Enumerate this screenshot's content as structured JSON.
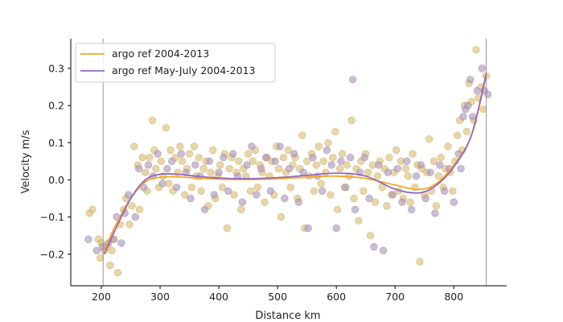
{
  "chart_data": {
    "type": "scatter",
    "title": "",
    "xlabel": "Distance km",
    "ylabel": "Velocity m/s",
    "xlim": [
      148,
      890
    ],
    "ylim": [
      -0.285,
      0.38
    ],
    "xticks": [
      200,
      300,
      400,
      500,
      600,
      700,
      800
    ],
    "yticks": [
      -0.2,
      -0.1,
      0.0,
      0.1,
      0.2,
      0.3
    ],
    "ytick_labels": [
      "−0.2",
      "−0.1",
      "0.0",
      "0.1",
      "0.2",
      "0.3"
    ],
    "grid": false,
    "legend_position": "top-left",
    "vertical_lines": [
      203,
      855
    ],
    "colors": {
      "fit_2004_2013": "#f5a623",
      "fit_may_july": "#9467bd",
      "points_gold": "#d4b46a",
      "points_purple": "#a993b4",
      "vline": "#8a8a8a"
    },
    "series": [
      {
        "name": "argo ref 2004-2013",
        "kind": "line",
        "x": [
          205,
          225,
          250,
          275,
          300,
          330,
          360,
          400,
          450,
          500,
          550,
          600,
          650,
          700,
          740,
          770,
          800,
          830,
          855
        ],
        "y": [
          -0.19,
          -0.12,
          -0.05,
          -0.005,
          0.007,
          0.008,
          0.005,
          0.002,
          0.001,
          0.003,
          0.007,
          0.01,
          0.004,
          -0.014,
          -0.026,
          -0.01,
          0.04,
          0.12,
          0.28
        ]
      },
      {
        "name": "argo ref May-July 2004-2013",
        "kind": "line",
        "x": [
          205,
          225,
          250,
          275,
          300,
          330,
          360,
          400,
          450,
          500,
          550,
          600,
          650,
          700,
          740,
          770,
          800,
          830,
          855
        ],
        "y": [
          -0.2,
          -0.13,
          -0.05,
          0.0,
          0.015,
          0.015,
          0.01,
          0.005,
          0.003,
          0.006,
          0.012,
          0.018,
          0.01,
          -0.025,
          -0.035,
          -0.015,
          0.035,
          0.12,
          0.285
        ]
      }
    ],
    "points_gold": [
      [
        180,
        -0.09
      ],
      [
        185,
        -0.08
      ],
      [
        195,
        -0.16
      ],
      [
        198,
        -0.21
      ],
      [
        200,
        -0.17
      ],
      [
        205,
        -0.19
      ],
      [
        210,
        -0.18
      ],
      [
        215,
        -0.23
      ],
      [
        218,
        -0.19
      ],
      [
        222,
        -0.16
      ],
      [
        228,
        -0.25
      ],
      [
        232,
        -0.12
      ],
      [
        238,
        -0.08
      ],
      [
        242,
        -0.05
      ],
      [
        248,
        -0.12
      ],
      [
        252,
        -0.07
      ],
      [
        256,
        0.09
      ],
      [
        262,
        0.04
      ],
      [
        265,
        -0.08
      ],
      [
        270,
        0.06
      ],
      [
        275,
        0.02
      ],
      [
        278,
        -0.03
      ],
      [
        282,
        0.06
      ],
      [
        287,
        0.16
      ],
      [
        290,
        0.08
      ],
      [
        293,
        0.03
      ],
      [
        298,
        -0.02
      ],
      [
        302,
        0.05
      ],
      [
        305,
        0.01
      ],
      [
        310,
        0.14
      ],
      [
        315,
        -0.01
      ],
      [
        318,
        0.08
      ],
      [
        322,
        -0.03
      ],
      [
        326,
        0.06
      ],
      [
        330,
        0.02
      ],
      [
        334,
        0.09
      ],
      [
        338,
        0.05
      ],
      [
        342,
        -0.04
      ],
      [
        346,
        0.03
      ],
      [
        350,
        0.07
      ],
      [
        354,
        -0.02
      ],
      [
        358,
        0.09
      ],
      [
        362,
        0.01
      ],
      [
        366,
        0.06
      ],
      [
        370,
        -0.03
      ],
      [
        374,
        0.03
      ],
      [
        378,
        0.05
      ],
      [
        382,
        -0.07
      ],
      [
        386,
        0.02
      ],
      [
        390,
        0.08
      ],
      [
        394,
        -0.05
      ],
      [
        398,
        0.01
      ],
      [
        402,
        0.04
      ],
      [
        406,
        -0.02
      ],
      [
        410,
        0.07
      ],
      [
        414,
        -0.13
      ],
      [
        418,
        0.03
      ],
      [
        422,
        0.06
      ],
      [
        426,
        -0.04
      ],
      [
        430,
        0.02
      ],
      [
        434,
        0.05
      ],
      [
        438,
        -0.08
      ],
      [
        442,
        0.03
      ],
      [
        446,
        0.01
      ],
      [
        450,
        0.07
      ],
      [
        454,
        -0.03
      ],
      [
        458,
        0.05
      ],
      [
        462,
        0.08
      ],
      [
        466,
        -0.02
      ],
      [
        470,
        0.04
      ],
      [
        474,
        0.02
      ],
      [
        478,
        -0.06
      ],
      [
        482,
        0.06
      ],
      [
        486,
        0.01
      ],
      [
        490,
        0.05
      ],
      [
        494,
        -0.04
      ],
      [
        498,
        0.09
      ],
      [
        502,
        0.03
      ],
      [
        506,
        -0.1
      ],
      [
        510,
        0.06
      ],
      [
        514,
        0.02
      ],
      [
        518,
        0.08
      ],
      [
        522,
        -0.02
      ],
      [
        526,
        0.04
      ],
      [
        530,
        0.06
      ],
      [
        534,
        -0.05
      ],
      [
        538,
        0.03
      ],
      [
        542,
        0.12
      ],
      [
        546,
        -0.13
      ],
      [
        550,
        0.05
      ],
      [
        554,
        0.01
      ],
      [
        558,
        0.07
      ],
      [
        562,
        -0.03
      ],
      [
        566,
        0.04
      ],
      [
        570,
        0.09
      ],
      [
        574,
        -0.01
      ],
      [
        578,
        0.05
      ],
      [
        582,
        0.02
      ],
      [
        586,
        0.1
      ],
      [
        590,
        -0.04
      ],
      [
        594,
        0.06
      ],
      [
        598,
        0.13
      ],
      [
        602,
        -0.08
      ],
      [
        606,
        0.03
      ],
      [
        610,
        0.07
      ],
      [
        614,
        -0.02
      ],
      [
        618,
        0.04
      ],
      [
        622,
        0.01
      ],
      [
        626,
        0.16
      ],
      [
        630,
        -0.05
      ],
      [
        634,
        0.03
      ],
      [
        638,
        -0.11
      ],
      [
        642,
        0.05
      ],
      [
        646,
        -0.03
      ],
      [
        650,
        0.07
      ],
      [
        654,
        0.02
      ],
      [
        658,
        -0.15
      ],
      [
        662,
        0.04
      ],
      [
        666,
        -0.06
      ],
      [
        670,
        0.01
      ],
      [
        674,
        0.05
      ],
      [
        678,
        -0.02
      ],
      [
        682,
        0.03
      ],
      [
        686,
        -0.07
      ],
      [
        690,
        0.06
      ],
      [
        694,
        -0.04
      ],
      [
        698,
        0.02
      ],
      [
        702,
        0.08
      ],
      [
        706,
        -0.03
      ],
      [
        710,
        0.05
      ],
      [
        714,
        -0.05
      ],
      [
        718,
        0.03
      ],
      [
        722,
        0.01
      ],
      [
        726,
        -0.06
      ],
      [
        730,
        0.07
      ],
      [
        734,
        -0.02
      ],
      [
        738,
        0.04
      ],
      [
        742,
        -0.22
      ],
      [
        746,
        0.03
      ],
      [
        750,
        -0.04
      ],
      [
        754,
        0.02
      ],
      [
        758,
        0.11
      ],
      [
        762,
        -0.03
      ],
      [
        766,
        0.05
      ],
      [
        770,
        -0.07
      ],
      [
        774,
        0.01
      ],
      [
        778,
        0.06
      ],
      [
        782,
        -0.02
      ],
      [
        786,
        0.03
      ],
      [
        790,
        0.09
      ],
      [
        794,
        0.02
      ],
      [
        798,
        -0.03
      ],
      [
        802,
        0.05
      ],
      [
        806,
        0.12
      ],
      [
        810,
        0.16
      ],
      [
        814,
        0.08
      ],
      [
        818,
        0.2
      ],
      [
        822,
        0.13
      ],
      [
        826,
        0.26
      ],
      [
        830,
        0.21
      ],
      [
        834,
        0.16
      ],
      [
        838,
        0.35
      ],
      [
        842,
        0.22
      ],
      [
        846,
        0.25
      ],
      [
        850,
        0.19
      ],
      [
        855,
        0.28
      ]
    ],
    "points_purple": [
      [
        178,
        -0.16
      ],
      [
        192,
        -0.19
      ],
      [
        202,
        -0.18
      ],
      [
        212,
        -0.17
      ],
      [
        220,
        -0.16
      ],
      [
        226,
        -0.1
      ],
      [
        234,
        -0.17
      ],
      [
        240,
        -0.09
      ],
      [
        246,
        -0.04
      ],
      [
        258,
        -0.1
      ],
      [
        264,
        0.03
      ],
      [
        272,
        -0.02
      ],
      [
        280,
        0.04
      ],
      [
        288,
        0.01
      ],
      [
        296,
        0.07
      ],
      [
        304,
        -0.01
      ],
      [
        312,
        0.03
      ],
      [
        320,
        0.05
      ],
      [
        328,
        -0.02
      ],
      [
        336,
        0.07
      ],
      [
        344,
        0.02
      ],
      [
        352,
        -0.05
      ],
      [
        360,
        0.04
      ],
      [
        368,
        0.01
      ],
      [
        376,
        -0.08
      ],
      [
        384,
        0.05
      ],
      [
        392,
        -0.04
      ],
      [
        400,
        0.02
      ],
      [
        408,
        0.06
      ],
      [
        416,
        -0.03
      ],
      [
        424,
        0.07
      ],
      [
        432,
        0.01
      ],
      [
        440,
        -0.06
      ],
      [
        448,
        0.04
      ],
      [
        456,
        0.09
      ],
      [
        464,
        -0.04
      ],
      [
        472,
        0.03
      ],
      [
        480,
        0.06
      ],
      [
        488,
        -0.03
      ],
      [
        496,
        0.05
      ],
      [
        504,
        0.09
      ],
      [
        512,
        -0.05
      ],
      [
        520,
        0.03
      ],
      [
        528,
        0.07
      ],
      [
        536,
        -0.06
      ],
      [
        544,
        0.02
      ],
      [
        552,
        -0.13
      ],
      [
        560,
        0.06
      ],
      [
        568,
        0.01
      ],
      [
        576,
        -0.03
      ],
      [
        584,
        0.08
      ],
      [
        592,
        0.04
      ],
      [
        600,
        -0.13
      ],
      [
        608,
        0.05
      ],
      [
        616,
        -0.02
      ],
      [
        624,
        0.06
      ],
      [
        628,
        0.27
      ],
      [
        632,
        -0.08
      ],
      [
        640,
        0.02
      ],
      [
        648,
        0.06
      ],
      [
        656,
        -0.05
      ],
      [
        664,
        -0.18
      ],
      [
        672,
        0.04
      ],
      [
        680,
        -0.19
      ],
      [
        688,
        0.02
      ],
      [
        696,
        -0.04
      ],
      [
        704,
        0.03
      ],
      [
        712,
        -0.06
      ],
      [
        720,
        0.05
      ],
      [
        728,
        -0.08
      ],
      [
        736,
        0.01
      ],
      [
        744,
        0.04
      ],
      [
        752,
        -0.05
      ],
      [
        760,
        0.02
      ],
      [
        768,
        -0.09
      ],
      [
        776,
        0.04
      ],
      [
        784,
        -0.03
      ],
      [
        792,
        0.03
      ],
      [
        800,
        -0.06
      ],
      [
        808,
        0.07
      ],
      [
        812,
        0.03
      ],
      [
        816,
        0.17
      ],
      [
        820,
        0.19
      ],
      [
        824,
        0.2
      ],
      [
        828,
        0.27
      ],
      [
        832,
        0.17
      ],
      [
        840,
        0.24
      ],
      [
        848,
        0.3
      ],
      [
        852,
        0.24
      ],
      [
        858,
        0.23
      ]
    ]
  }
}
